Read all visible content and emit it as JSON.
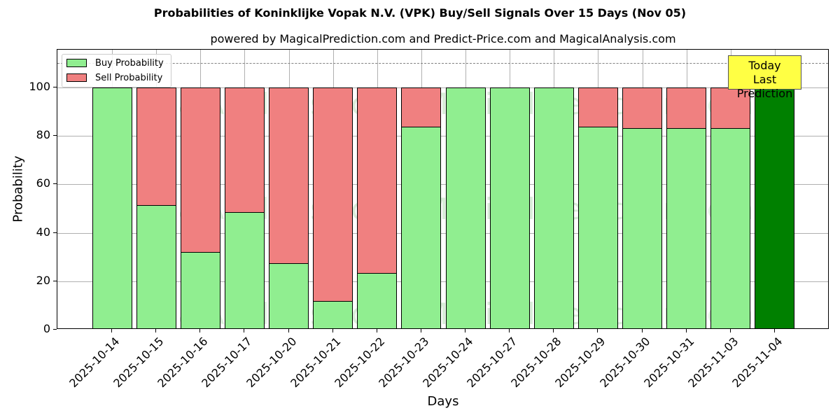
{
  "header": {
    "title": "Probabilities of Koninklijke Vopak N.V. (VPK) Buy/Sell Signals Over 15 Days (Nov 05)",
    "subtitle": "powered by MagicalPrediction.com and Predict-Price.com and MagicalAnalysis.com"
  },
  "axes": {
    "xlabel": "Days",
    "ylabel": "Probability",
    "yticks": [
      "0",
      "20",
      "40",
      "60",
      "80",
      "100"
    ]
  },
  "legend": {
    "buy_label": "Buy Probability",
    "sell_label": "Sell Probability"
  },
  "annotation": {
    "line1": "Today",
    "line2": "Last Prediction"
  },
  "watermarks": [
    "MagicalAnalysis.com",
    "MagicalPrediction.com"
  ],
  "colors": {
    "buy": "#90ee90",
    "sell": "#f08080",
    "today_buy": "#008000",
    "annotation_bg": "#ffff44"
  },
  "chart_data": {
    "type": "bar",
    "stacked": true,
    "title": "Probabilities of Koninklijke Vopak N.V. (VPK) Buy/Sell Signals Over 15 Days (Nov 05)",
    "subtitle": "powered by MagicalPrediction.com and Predict-Price.com and MagicalAnalysis.com",
    "xlabel": "Days",
    "ylabel": "Probability",
    "ylim": [
      0,
      115
    ],
    "yticks": [
      0,
      20,
      40,
      60,
      80,
      100
    ],
    "grid": true,
    "legend_position": "upper left",
    "reference_line": {
      "y": 110,
      "style": "dashed",
      "color": "#808080"
    },
    "categories": [
      "2025-10-14",
      "2025-10-15",
      "2025-10-16",
      "2025-10-17",
      "2025-10-20",
      "2025-10-21",
      "2025-10-22",
      "2025-10-23",
      "2025-10-24",
      "2025-10-27",
      "2025-10-28",
      "2025-10-29",
      "2025-10-30",
      "2025-10-31",
      "2025-11-03",
      "2025-11-04"
    ],
    "series": [
      {
        "name": "Buy Probability",
        "color": "#90ee90",
        "values": [
          100,
          51.5,
          32.1,
          48.5,
          27.4,
          11.9,
          23.5,
          83.7,
          100,
          100,
          100,
          83.7,
          83.1,
          83.1,
          83.1,
          100
        ]
      },
      {
        "name": "Sell Probability",
        "color": "#f08080",
        "values": [
          0,
          48.5,
          67.9,
          51.5,
          72.6,
          88.1,
          76.5,
          16.3,
          0,
          0,
          0,
          16.3,
          16.9,
          16.9,
          16.9,
          0
        ]
      }
    ],
    "annotations": [
      {
        "text": "Today\nLast Prediction",
        "x": "2025-11-04"
      }
    ]
  }
}
